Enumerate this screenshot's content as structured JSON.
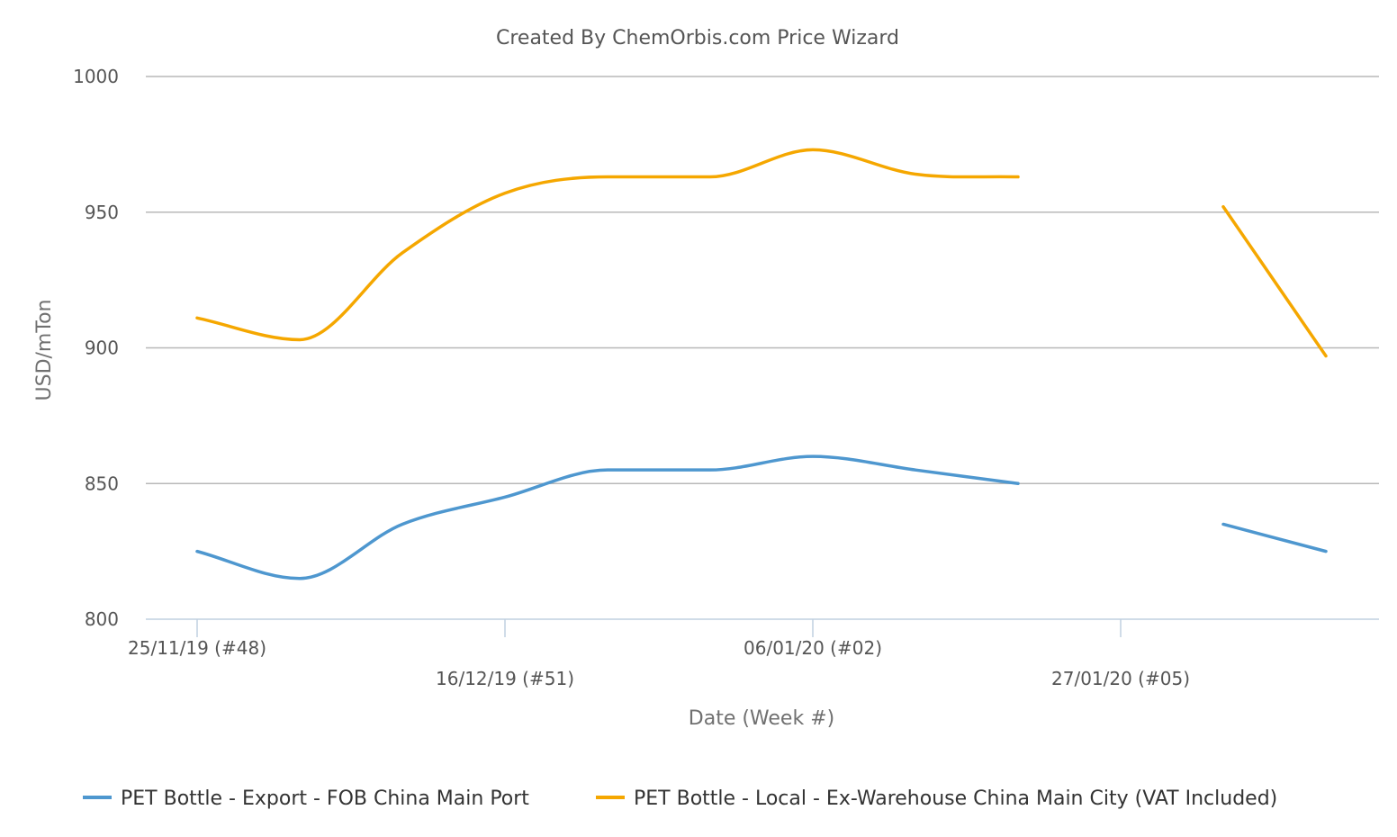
{
  "chart_data": {
    "type": "line",
    "title": "Created By ChemOrbis.com Price Wizard",
    "xlabel": "Date (Week #)",
    "ylabel": "USD/mTon",
    "ylim": [
      800,
      1000
    ],
    "yticks": [
      800,
      850,
      900,
      950,
      1000
    ],
    "grid": true,
    "legend_position": "bottom",
    "x": [
      "25/11/19",
      "02/12/19",
      "09/12/19",
      "16/12/19",
      "23/12/19",
      "30/12/19",
      "06/01/20",
      "13/01/20",
      "20/01/20",
      "27/01/20",
      "03/02/20",
      "10/02/20"
    ],
    "xtick_labels": [
      {
        "at": "25/11/19",
        "label": "25/11/19 (#48)"
      },
      {
        "at": "16/12/19",
        "label": "16/12/19 (#51)"
      },
      {
        "at": "06/01/20",
        "label": "06/01/20 (#02)"
      },
      {
        "at": "27/01/20",
        "label": "27/01/20 (#05)"
      }
    ],
    "series": [
      {
        "name": "PET Bottle - Export - FOB China Main Port",
        "color": "#4e97cf",
        "values": [
          825,
          815,
          835,
          845,
          855,
          855,
          860,
          855,
          850,
          null,
          835,
          825
        ]
      },
      {
        "name": "PET Bottle - Local - Ex-Warehouse China Main City",
        "name_suffix": "(VAT Included)",
        "color": "#f5a700",
        "values": [
          911,
          903,
          935,
          957,
          963,
          963,
          973,
          964,
          963,
          null,
          952,
          897
        ]
      }
    ]
  }
}
